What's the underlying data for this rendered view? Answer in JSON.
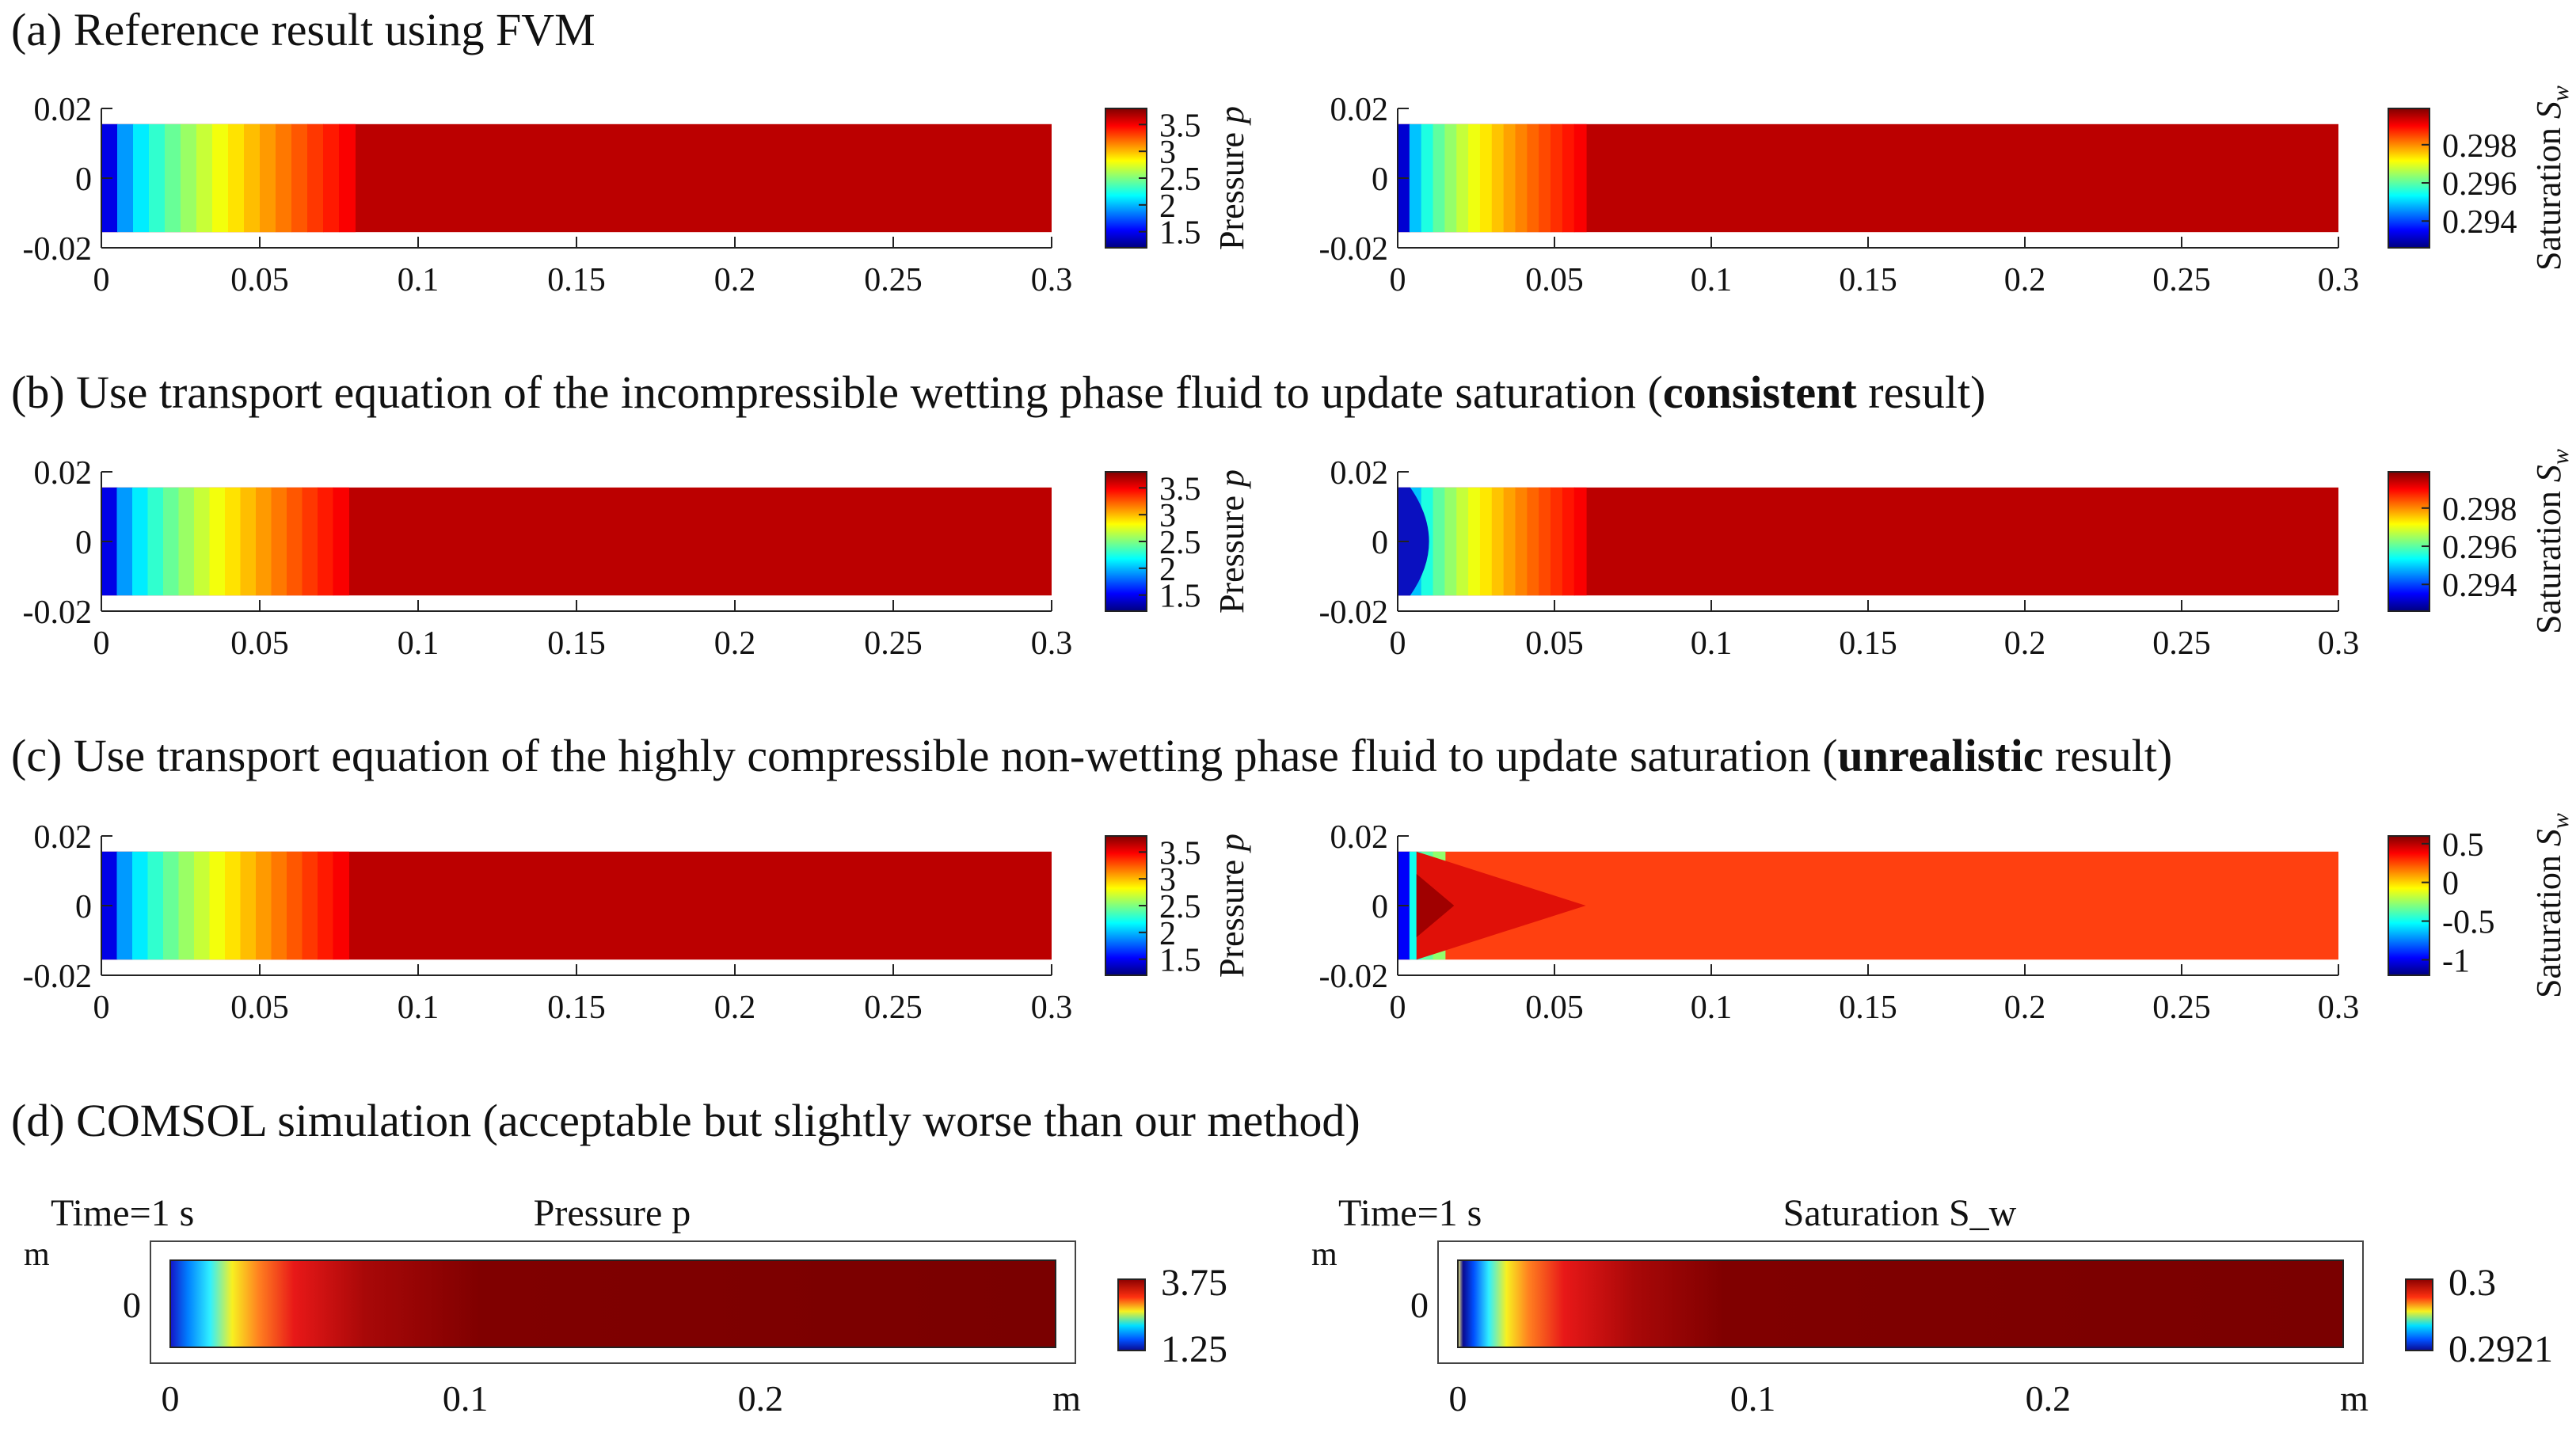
{
  "figure": {
    "panels": [
      {
        "title_prefix": "(a) Reference result using FVM",
        "title_bold": "",
        "title_suffix": ""
      },
      {
        "title_prefix": "(b) Use transport equation of the incompressible wetting phase fluid to update saturation (",
        "title_bold": "consistent",
        "title_suffix": " result)"
      },
      {
        "title_prefix": "(c) Use transport equation of the highly compressible non-wetting phase fluid to update saturation (",
        "title_bold": "unrealistic",
        "title_suffix": " result)"
      },
      {
        "title_prefix": "(d) COMSOL simulation (acceptable but slightly worse than our method)",
        "title_bold": "",
        "title_suffix": ""
      }
    ]
  },
  "chart_data": [
    {
      "type": "heatmap",
      "panel": "a",
      "field": "pressure",
      "x_ticks": [
        "0",
        "0.05",
        "0.1",
        "0.15",
        "0.2",
        "0.25",
        "0.3"
      ],
      "y_ticks": [
        "0.02",
        "0",
        "-0.02"
      ],
      "xlim": [
        0,
        0.3
      ],
      "ylim": [
        -0.02,
        0.02
      ],
      "colorbar": {
        "label_text": "Pressure ",
        "label_var": "p",
        "ticks": [
          "3.5",
          "3",
          "2.5",
          "2",
          "1.5"
        ],
        "range": [
          1.2,
          3.8
        ]
      },
      "front_x": 0.08
    },
    {
      "type": "heatmap",
      "panel": "a",
      "field": "saturation",
      "x_ticks": [
        "0",
        "0.05",
        "0.1",
        "0.15",
        "0.2",
        "0.25",
        "0.3"
      ],
      "y_ticks": [
        "0.02",
        "0",
        "-0.02"
      ],
      "xlim": [
        0,
        0.3
      ],
      "ylim": [
        -0.02,
        0.02
      ],
      "colorbar": {
        "label_text": "Saturation ",
        "label_var": "S",
        "label_sub": "w",
        "ticks": [
          "0.298",
          "0.296",
          "0.294"
        ],
        "range": [
          0.2926,
          0.2999
        ]
      },
      "front_x": 0.06
    },
    {
      "type": "heatmap",
      "panel": "b",
      "field": "pressure",
      "x_ticks": [
        "0",
        "0.05",
        "0.1",
        "0.15",
        "0.2",
        "0.25",
        "0.3"
      ],
      "y_ticks": [
        "0.02",
        "0",
        "-0.02"
      ],
      "xlim": [
        0,
        0.3
      ],
      "ylim": [
        -0.02,
        0.02
      ],
      "colorbar": {
        "label_text": "Pressure ",
        "label_var": "p",
        "ticks": [
          "3.5",
          "3",
          "2.5",
          "2",
          "1.5"
        ],
        "range": [
          1.2,
          3.8
        ]
      },
      "front_x": 0.078
    },
    {
      "type": "heatmap",
      "panel": "b",
      "field": "saturation",
      "x_ticks": [
        "0",
        "0.05",
        "0.1",
        "0.15",
        "0.2",
        "0.25",
        "0.3"
      ],
      "y_ticks": [
        "0.02",
        "0",
        "-0.02"
      ],
      "xlim": [
        0,
        0.3
      ],
      "ylim": [
        -0.02,
        0.02
      ],
      "colorbar": {
        "label_text": "Saturation ",
        "label_var": "S",
        "label_sub": "w",
        "ticks": [
          "0.298",
          "0.296",
          "0.294"
        ],
        "range": [
          0.2926,
          0.2999
        ]
      },
      "front_x": 0.06
    },
    {
      "type": "heatmap",
      "panel": "c",
      "field": "pressure",
      "x_ticks": [
        "0",
        "0.05",
        "0.1",
        "0.15",
        "0.2",
        "0.25",
        "0.3"
      ],
      "y_ticks": [
        "0.02",
        "0",
        "-0.02"
      ],
      "xlim": [
        0,
        0.3
      ],
      "ylim": [
        -0.02,
        0.02
      ],
      "colorbar": {
        "label_text": "Pressure ",
        "label_var": "p",
        "ticks": [
          "3.5",
          "3",
          "2.5",
          "2",
          "1.5"
        ],
        "range": [
          1.2,
          3.8
        ]
      },
      "front_x": 0.078
    },
    {
      "type": "heatmap",
      "panel": "c",
      "field": "saturation",
      "x_ticks": [
        "0",
        "0.05",
        "0.1",
        "0.15",
        "0.2",
        "0.25",
        "0.3"
      ],
      "y_ticks": [
        "0.02",
        "0",
        "-0.02"
      ],
      "xlim": [
        0,
        0.3
      ],
      "ylim": [
        -0.02,
        0.02
      ],
      "colorbar": {
        "label_text": "Saturation ",
        "label_var": "S",
        "label_sub": "w",
        "ticks": [
          "0.5",
          "0",
          "-0.5",
          "-1"
        ],
        "range": [
          -1.2,
          0.6
        ]
      },
      "front_x": 0.06
    },
    {
      "type": "heatmap",
      "panel": "d",
      "field": "pressure",
      "time_label": "Time=1 s",
      "title": "Pressure p",
      "unit_y": "m",
      "unit_x": "m",
      "x_ticks": [
        "0",
        "0.1",
        "0.2"
      ],
      "y_ticks": [
        "0"
      ],
      "colorbar": {
        "max_label": "3.75",
        "min_label": "1.25"
      }
    },
    {
      "type": "heatmap",
      "panel": "d",
      "field": "saturation",
      "time_label": "Time=1 s",
      "title": "Saturation S_w",
      "unit_y": "m",
      "unit_x": "m",
      "x_ticks": [
        "0",
        "0.1",
        "0.2"
      ],
      "y_ticks": [
        "0"
      ],
      "colorbar": {
        "max_label": "0.3",
        "min_label": "0.2921"
      }
    }
  ]
}
